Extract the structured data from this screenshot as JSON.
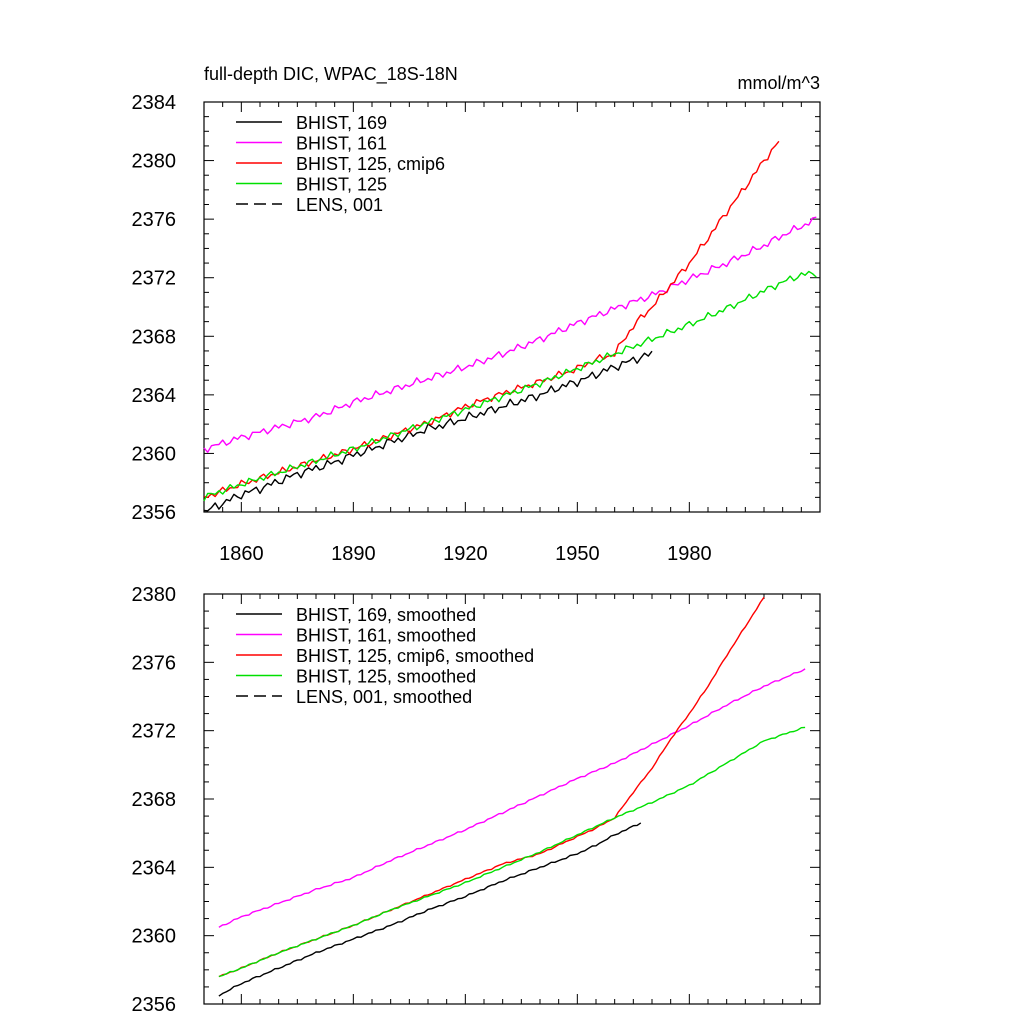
{
  "chart_data": [
    {
      "type": "line",
      "title": "full-depth DIC, WPAC_18S-18N",
      "units": "mmol/m^3",
      "xlim": [
        1850,
        2015
      ],
      "ylim": [
        2356,
        2384
      ],
      "xticks": [
        1860,
        1890,
        1920,
        1950,
        1980
      ],
      "yticks": [
        2356,
        2360,
        2364,
        2368,
        2372,
        2376,
        2380,
        2384
      ],
      "xtick_labels": [
        "1860",
        "1890",
        "1920",
        "1950",
        "1980"
      ],
      "ytick_labels": [
        "2356",
        "2360",
        "2364",
        "2368",
        "2372",
        "2376",
        "2380",
        "2384"
      ],
      "legend_position": "top-left",
      "series": [
        {
          "name": "BHIST, 169",
          "color": "#000000",
          "dash": "solid",
          "noise": 0.35,
          "phase": 0,
          "x": [
            1850,
            1855,
            1860,
            1865,
            1870,
            1875,
            1880,
            1885,
            1890,
            1895,
            1900,
            1905,
            1910,
            1915,
            1920,
            1925,
            1930,
            1935,
            1940,
            1945,
            1950,
            1955,
            1960,
            1965,
            1970
          ],
          "values": [
            2356.0,
            2356.6,
            2357.2,
            2357.6,
            2358.1,
            2358.6,
            2359.0,
            2359.4,
            2359.9,
            2360.3,
            2360.8,
            2361.2,
            2361.7,
            2362.0,
            2362.4,
            2362.8,
            2363.2,
            2363.6,
            2364.0,
            2364.5,
            2364.9,
            2365.4,
            2365.9,
            2366.4,
            2366.8
          ]
        },
        {
          "name": "BHIST, 161",
          "color": "#ff00ff",
          "dash": "solid",
          "noise": 0.3,
          "phase": 1.3,
          "x": [
            1850,
            1860,
            1870,
            1880,
            1890,
            1900,
            1910,
            1920,
            1930,
            1940,
            1950,
            1960,
            1970,
            1980,
            1990,
            2000,
            2005,
            2010,
            2014
          ],
          "values": [
            2360.3,
            2361.1,
            2361.8,
            2362.5,
            2363.5,
            2364.3,
            2365.1,
            2365.9,
            2366.8,
            2367.8,
            2368.9,
            2369.9,
            2370.8,
            2371.9,
            2373.0,
            2374.2,
            2374.9,
            2375.5,
            2376.0
          ]
        },
        {
          "name": "BHIST, 125, cmip6",
          "color": "#ff0000",
          "dash": "solid",
          "noise": 0.28,
          "phase": 2.1,
          "x": [
            1850,
            1860,
            1870,
            1880,
            1890,
            1900,
            1910,
            1920,
            1930,
            1940,
            1950,
            1955,
            1960,
            1963,
            1966,
            1970,
            1975,
            1980,
            1985,
            1990,
            1995,
            2000,
            2004
          ],
          "values": [
            2357.0,
            2357.9,
            2358.7,
            2359.5,
            2360.3,
            2361.2,
            2362.1,
            2363.2,
            2364.1,
            2364.9,
            2365.8,
            2366.4,
            2366.8,
            2368.0,
            2369.0,
            2370.0,
            2371.5,
            2373.0,
            2374.7,
            2376.5,
            2378.2,
            2380.0,
            2381.3
          ]
        },
        {
          "name": "BHIST, 125",
          "color": "#00e000",
          "dash": "solid",
          "noise": 0.28,
          "phase": 3.7,
          "x": [
            1850,
            1860,
            1870,
            1880,
            1890,
            1900,
            1910,
            1920,
            1930,
            1940,
            1950,
            1960,
            1970,
            1980,
            1990,
            2000,
            2005,
            2010,
            2014
          ],
          "values": [
            2357.0,
            2357.9,
            2358.7,
            2359.5,
            2360.3,
            2361.2,
            2362.1,
            2363.0,
            2363.9,
            2364.8,
            2365.8,
            2366.8,
            2367.8,
            2368.8,
            2369.9,
            2371.1,
            2371.7,
            2372.2,
            2372.3
          ]
        }
      ],
      "legend": [
        {
          "label": "BHIST, 169",
          "color": "#000000",
          "dash": "solid"
        },
        {
          "label": "BHIST, 161",
          "color": "#ff00ff",
          "dash": "solid"
        },
        {
          "label": "BHIST, 125, cmip6",
          "color": "#ff0000",
          "dash": "solid"
        },
        {
          "label": "BHIST, 125",
          "color": "#00e000",
          "dash": "solid"
        },
        {
          "label": "LENS, 001",
          "color": "#000000",
          "dash": "dashed"
        }
      ]
    },
    {
      "type": "line",
      "title": "",
      "units": "",
      "xlim": [
        1850,
        2015
      ],
      "ylim": [
        2356,
        2380
      ],
      "xticks": [
        1860,
        1890,
        1920,
        1950,
        1980
      ],
      "yticks": [
        2356,
        2360,
        2364,
        2368,
        2372,
        2376,
        2380
      ],
      "xtick_labels": [],
      "ytick_labels": [
        "2356",
        "2360",
        "2364",
        "2368",
        "2372",
        "2376",
        "2380"
      ],
      "legend_position": "top-left",
      "series": [
        {
          "name": "BHIST, 169, smoothed",
          "color": "#000000",
          "dash": "solid",
          "noise": 0.06,
          "phase": 0.5,
          "x": [
            1854,
            1860,
            1870,
            1880,
            1890,
            1900,
            1910,
            1920,
            1930,
            1940,
            1950,
            1955,
            1960,
            1967
          ],
          "values": [
            2356.5,
            2357.2,
            2358.1,
            2359.0,
            2359.8,
            2360.6,
            2361.5,
            2362.3,
            2363.2,
            2364.0,
            2364.8,
            2365.3,
            2365.9,
            2366.6
          ]
        },
        {
          "name": "BHIST, 161, smoothed",
          "color": "#ff00ff",
          "dash": "solid",
          "noise": 0.06,
          "phase": 1.1,
          "x": [
            1854,
            1860,
            1870,
            1880,
            1890,
            1900,
            1910,
            1920,
            1930,
            1940,
            1950,
            1960,
            1970,
            1980,
            1990,
            2000,
            2011
          ],
          "values": [
            2360.5,
            2361.1,
            2361.9,
            2362.7,
            2363.4,
            2364.4,
            2365.3,
            2366.2,
            2367.2,
            2368.2,
            2369.2,
            2370.1,
            2371.2,
            2372.3,
            2373.5,
            2374.6,
            2375.6
          ]
        },
        {
          "name": "BHIST, 125, cmip6, smoothed",
          "color": "#ff0000",
          "dash": "solid",
          "noise": 0.05,
          "phase": 2.4,
          "x": [
            1854,
            1860,
            1870,
            1880,
            1890,
            1900,
            1910,
            1920,
            1930,
            1940,
            1950,
            1955,
            1960,
            1965,
            1970,
            1975,
            1980,
            1985,
            1990,
            1995,
            2000
          ],
          "values": [
            2357.6,
            2358.1,
            2359.0,
            2359.8,
            2360.6,
            2361.5,
            2362.4,
            2363.3,
            2364.2,
            2364.8,
            2365.8,
            2366.3,
            2366.9,
            2368.4,
            2369.8,
            2371.5,
            2373.0,
            2374.6,
            2376.4,
            2378.1,
            2379.8
          ]
        },
        {
          "name": "BHIST, 125, smoothed",
          "color": "#00e000",
          "dash": "solid",
          "noise": 0.05,
          "phase": 3.2,
          "x": [
            1854,
            1860,
            1870,
            1880,
            1890,
            1900,
            1910,
            1920,
            1930,
            1940,
            1950,
            1960,
            1970,
            1980,
            1990,
            2000,
            2011
          ],
          "values": [
            2357.6,
            2358.1,
            2359.0,
            2359.8,
            2360.6,
            2361.5,
            2362.3,
            2363.1,
            2364.0,
            2364.9,
            2365.9,
            2366.9,
            2367.8,
            2368.8,
            2370.1,
            2371.4,
            2372.2
          ]
        }
      ],
      "legend": [
        {
          "label": "BHIST, 169, smoothed",
          "color": "#000000",
          "dash": "solid"
        },
        {
          "label": "BHIST, 161, smoothed",
          "color": "#ff00ff",
          "dash": "solid"
        },
        {
          "label": "BHIST, 125, cmip6, smoothed",
          "color": "#ff0000",
          "dash": "solid"
        },
        {
          "label": "BHIST, 125, smoothed",
          "color": "#00e000",
          "dash": "solid"
        },
        {
          "label": "LENS, 001, smoothed",
          "color": "#000000",
          "dash": "dashed"
        }
      ]
    }
  ]
}
